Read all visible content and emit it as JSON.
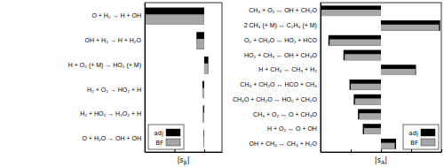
{
  "chart_data": [
    {
      "type": "bar",
      "orientation": "horizontal",
      "xlabel": "|sβ|",
      "categories": [
        "O + H₂ → H + OH",
        "OH + H₂ → H + H₂O",
        "H + O₂ (+ M) → HO₂ (+ M)",
        "H₂ + O₂ → HO₂ + H",
        "H₂ + HO₂ → H₂O₂ + H",
        "O + H₂O → OH + OH"
      ],
      "series": [
        {
          "name": "adj",
          "color": "#000000",
          "values": [
            -1,
            -0.13,
            0.07,
            -0.03,
            -0.02,
            -0.01
          ]
        },
        {
          "name": "BF",
          "color": "#a6a6a6",
          "values": [
            -1,
            -0.13,
            0.07,
            -0.03,
            -0.02,
            -0.01
          ]
        }
      ],
      "xlim": [
        -1,
        0.3
      ],
      "xticks": [
        -1,
        -0.5,
        0
      ],
      "tick_labels": "y",
      "legend": "lower left"
    },
    {
      "type": "bar",
      "orientation": "horizontal",
      "xlabel": "|sA|",
      "categories": [
        "CH₃ + O₂ ↔ OH + CH₂O",
        "2 CH₃ (+ M) ↔ C₂H₆ (+ M)",
        "O₂ + CH₂O ↔ HO₂ + HCO",
        "HO₂ + CH₃ ↔ OH + CH₃O",
        "H + CH₄ ↔ CH₃ + H₂",
        "CH₃ + CH₂O ↔ HCO + CH₄",
        "CH₃O + CH₂O ↔ HO₂ + CH₂O",
        "CH₃ + O₂ ↔ O + CH₃O",
        "H + O₂ ↔ O + OH",
        "OH + CH₄ ↔ CH₃ + H₂O"
      ],
      "series": [
        {
          "name": "adj",
          "color": "#000000",
          "values": [
            -1,
            0.98,
            -0.87,
            -0.62,
            0.58,
            -0.52,
            -0.45,
            -0.38,
            -0.3,
            0.25
          ]
        },
        {
          "name": "BF",
          "color": "#a6a6a6",
          "values": [
            -1,
            0.96,
            -0.85,
            -0.6,
            0.57,
            -0.5,
            -0.43,
            -0.36,
            -0.28,
            0.23
          ]
        }
      ],
      "xlim": [
        -1,
        1
      ],
      "xticks": [
        -1,
        -0.5,
        0,
        0.5,
        1
      ],
      "tick_labels": "y",
      "legend": "lower right"
    }
  ]
}
